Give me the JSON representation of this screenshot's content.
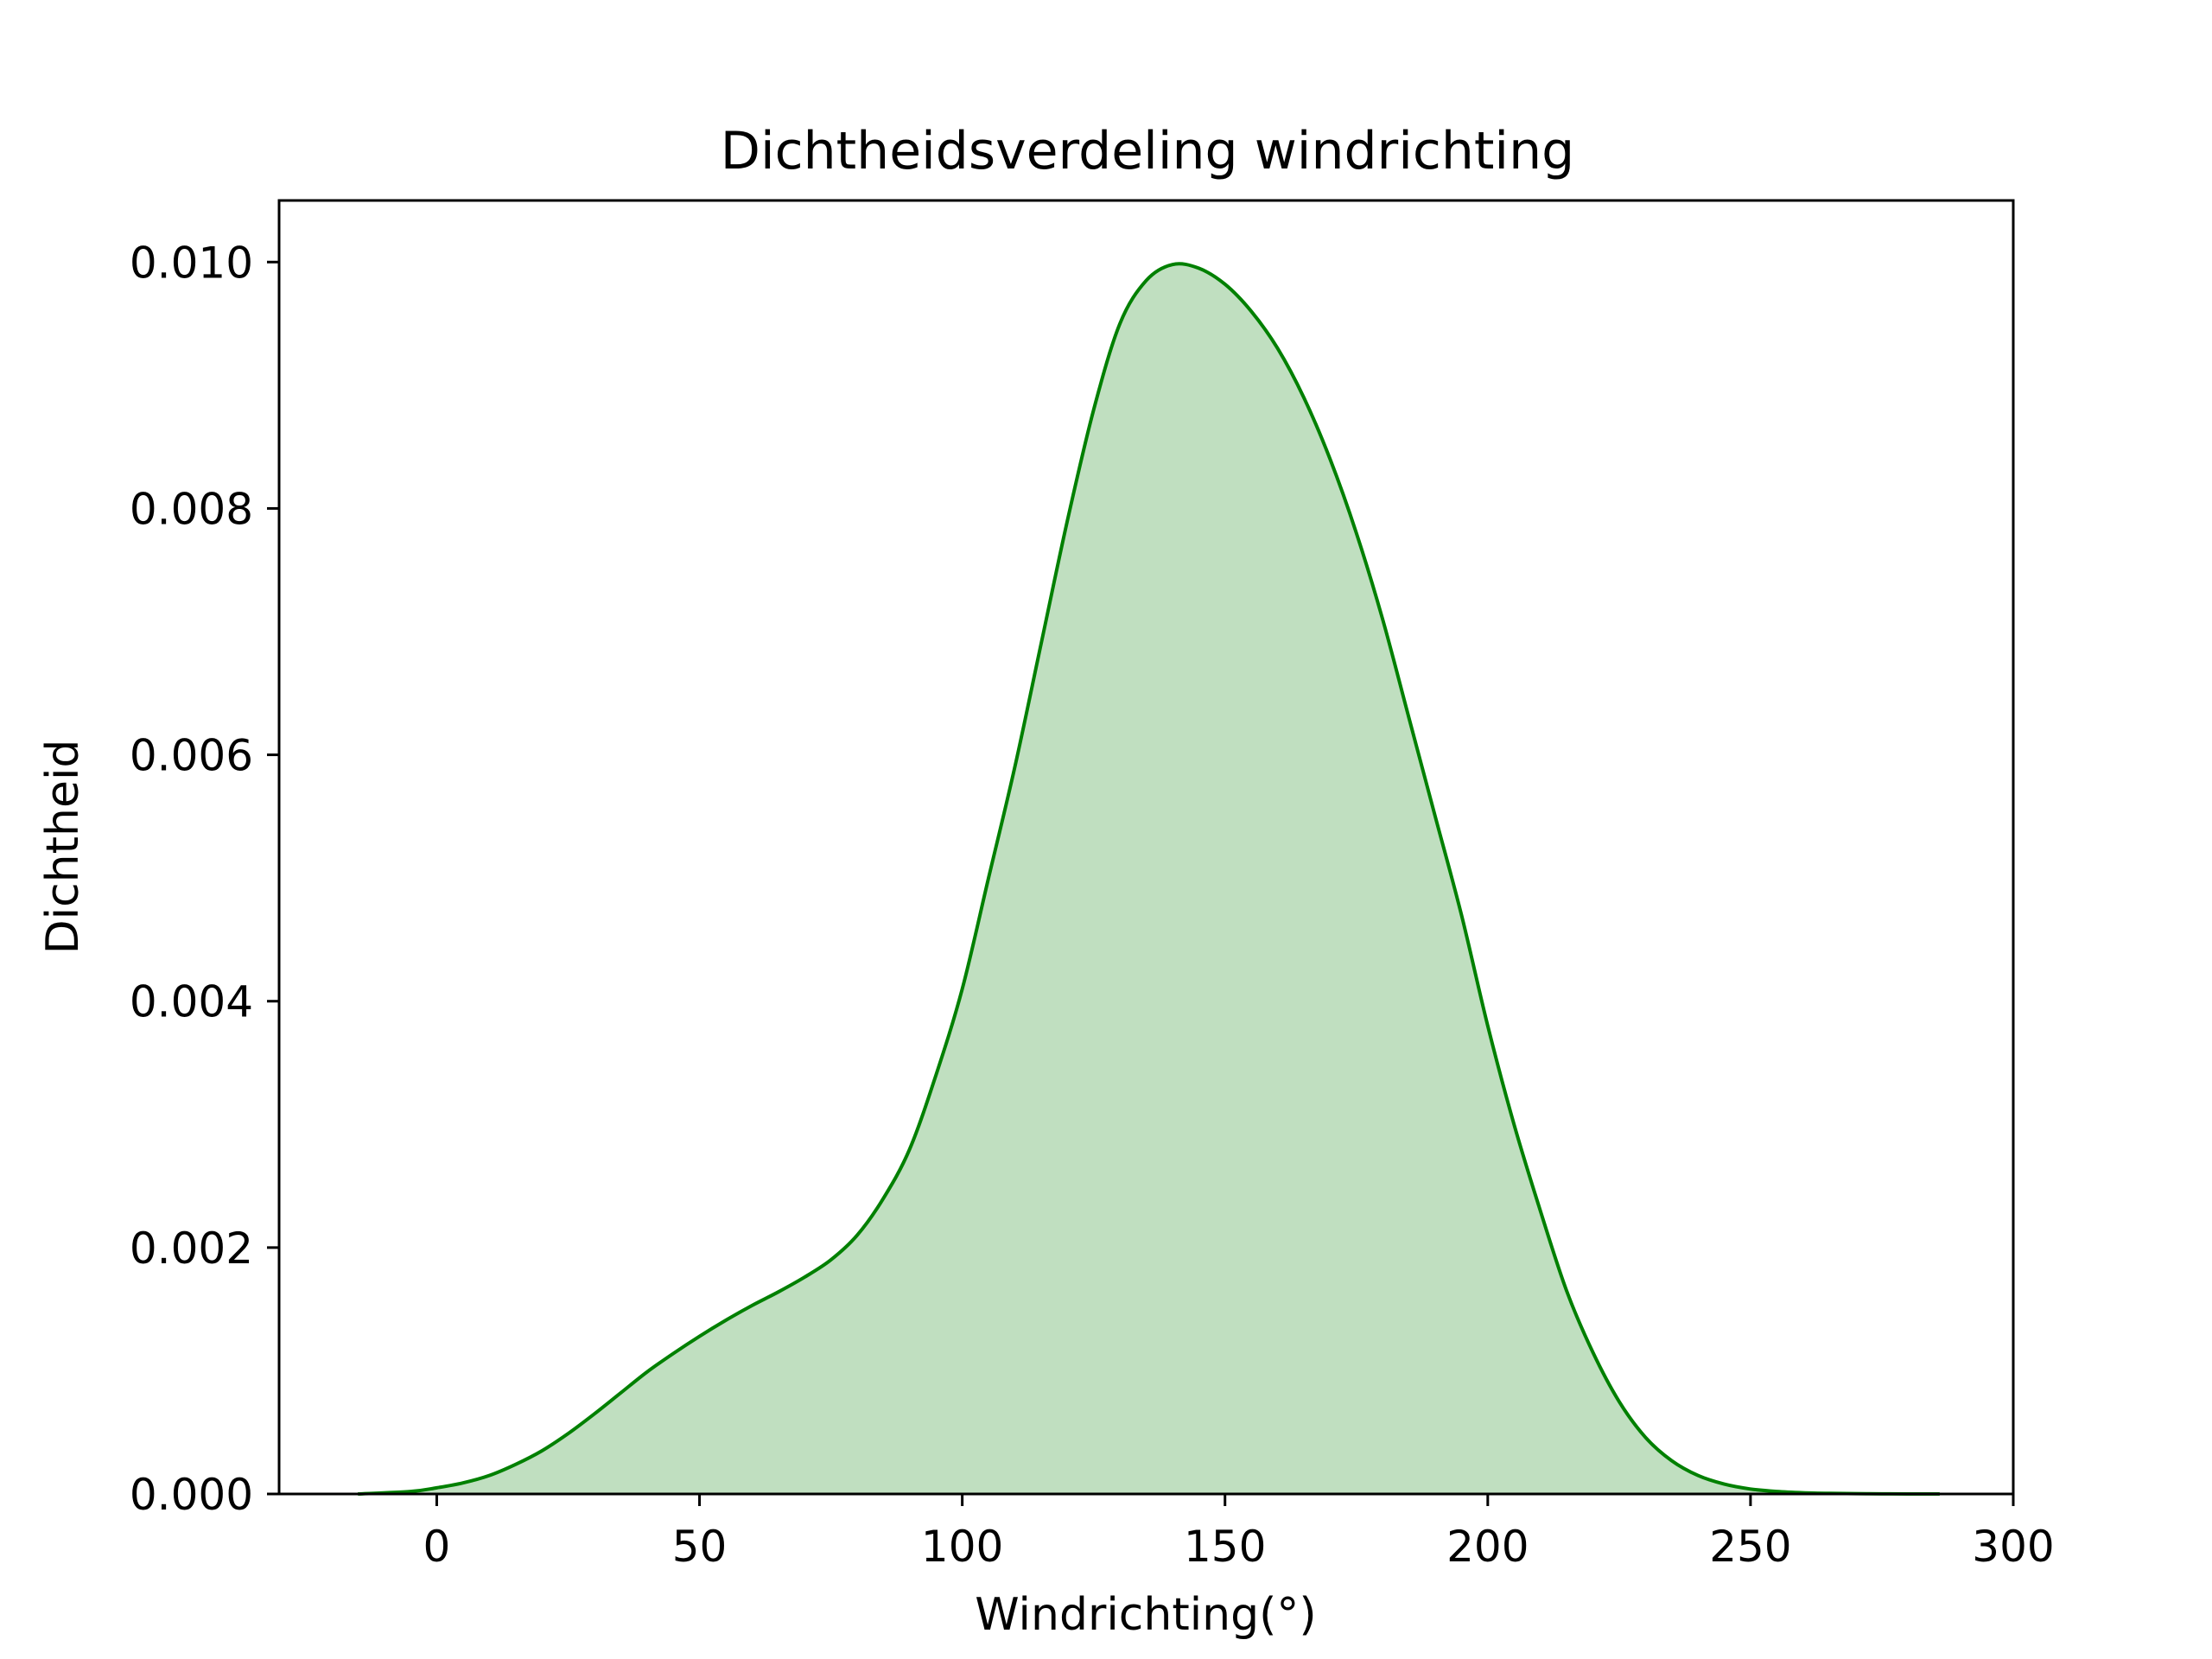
{
  "chart_data": {
    "type": "area",
    "title": "Dichtheidsverdeling windrichting",
    "xlabel": "Windrichting(°)",
    "ylabel": "Dichtheid",
    "xlim": [
      -30,
      300
    ],
    "ylim": [
      0,
      0.0105
    ],
    "xticks": [
      0,
      50,
      100,
      150,
      200,
      250,
      300
    ],
    "xtick_labels": [
      "0",
      "50",
      "100",
      "150",
      "200",
      "250",
      "300"
    ],
    "yticks": [
      0,
      0.002,
      0.004,
      0.006,
      0.008,
      0.01
    ],
    "ytick_labels": [
      "0.000",
      "0.002",
      "0.004",
      "0.006",
      "0.008",
      "0.010"
    ],
    "grid": false,
    "legend": false,
    "line_color": "#008000",
    "fill_color": "#c0dfc0",
    "series": [
      {
        "x": [
          -15,
          -5,
          0,
          5,
          10,
          15,
          20,
          25,
          30,
          35,
          40,
          45,
          50,
          55,
          60,
          65,
          70,
          75,
          80,
          85,
          90,
          95,
          100,
          105,
          110,
          115,
          120,
          125,
          130,
          135,
          140,
          145,
          150,
          155,
          160,
          165,
          170,
          175,
          180,
          185,
          190,
          195,
          200,
          205,
          210,
          215,
          220,
          225,
          230,
          235,
          240,
          245,
          250,
          255,
          260,
          265,
          270,
          275,
          280,
          286
        ],
        "y": [
          0.0,
          2e-05,
          5e-05,
          9e-05,
          0.00015,
          0.00024,
          0.00035,
          0.00049,
          0.00065,
          0.00082,
          0.00099,
          0.00114,
          0.00128,
          0.00141,
          0.00153,
          0.00164,
          0.00176,
          0.0019,
          0.0021,
          0.0024,
          0.0028,
          0.0034,
          0.0041,
          0.005,
          0.0059,
          0.0069,
          0.0079,
          0.0088,
          0.0095,
          0.00985,
          0.00998,
          0.00995,
          0.00982,
          0.0096,
          0.0093,
          0.0089,
          0.0084,
          0.0078,
          0.0071,
          0.0063,
          0.0055,
          0.0047,
          0.0038,
          0.003,
          0.0023,
          0.00165,
          0.00115,
          0.00075,
          0.00046,
          0.00027,
          0.00015,
          8e-05,
          4e-05,
          2e-05,
          1e-05,
          5e-06,
          2.5e-06,
          1e-06,
          4e-07,
          0.0
        ]
      }
    ]
  }
}
